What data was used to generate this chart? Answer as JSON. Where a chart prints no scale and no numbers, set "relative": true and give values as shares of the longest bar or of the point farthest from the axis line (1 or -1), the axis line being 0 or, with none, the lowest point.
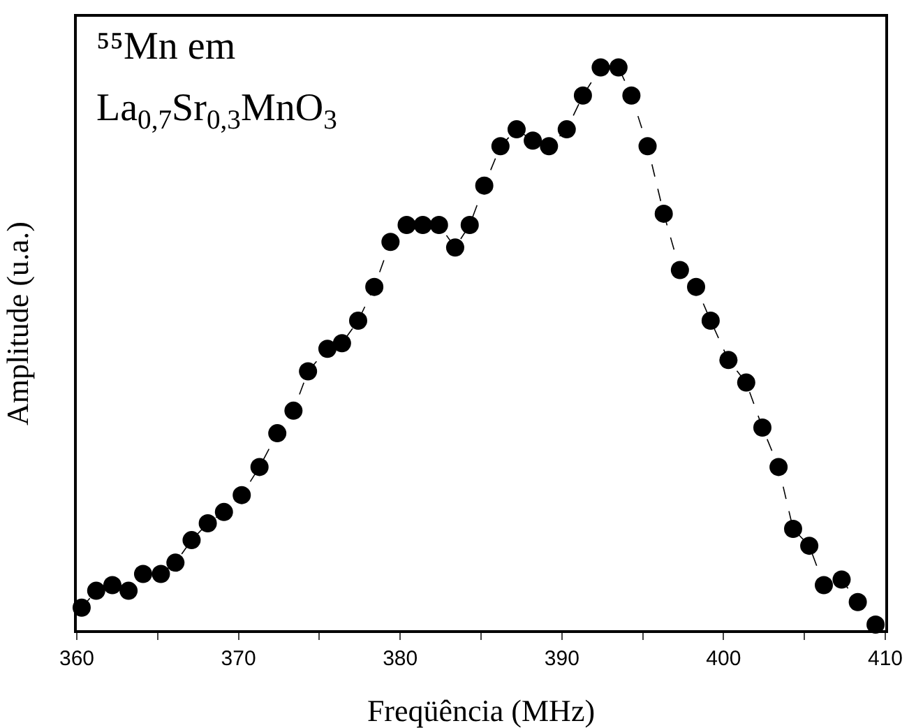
{
  "chart_data": {
    "type": "line",
    "relative": true,
    "xlabel": "Freqüência (MHz)",
    "ylabel": "Amplitude (u.a.)",
    "annotations": [
      "⁵⁵Mn em",
      "La$_{0,7}$Sr$_{0,3}$MnO$_{3}$"
    ],
    "xlim": [
      360,
      410
    ],
    "xticks": [
      360,
      {
        "value": 365,
        "label": null
      },
      370,
      {
        "value": 375,
        "label": null
      },
      380,
      {
        "value": 385,
        "label": null
      },
      390,
      {
        "value": 395,
        "label": null
      },
      400,
      {
        "value": 405,
        "label": null
      },
      410
    ],
    "marker": "circle",
    "line_style": "dashed",
    "grid": false,
    "legend": false,
    "x": [
      360.3,
      361.2,
      362.2,
      363.2,
      364.1,
      365.2,
      366.1,
      367.1,
      368.1,
      369.1,
      370.2,
      371.3,
      372.4,
      373.4,
      374.3,
      375.5,
      376.4,
      377.4,
      378.4,
      379.4,
      380.4,
      381.4,
      382.4,
      383.4,
      384.3,
      385.2,
      386.2,
      387.2,
      388.2,
      389.2,
      390.3,
      391.3,
      392.4,
      393.5,
      394.3,
      395.3,
      396.3,
      397.3,
      398.3,
      399.2,
      400.3,
      401.4,
      402.4,
      403.4,
      404.3,
      405.3,
      406.2,
      407.3,
      408.3,
      409.4
    ],
    "series": [
      {
        "color": "#000000",
        "values": [
          0.04,
          0.07,
          0.08,
          0.07,
          0.1,
          0.1,
          0.12,
          0.16,
          0.19,
          0.21,
          0.24,
          0.29,
          0.35,
          0.39,
          0.46,
          0.5,
          0.51,
          0.55,
          0.61,
          0.69,
          0.72,
          0.72,
          0.72,
          0.68,
          0.72,
          0.79,
          0.86,
          0.89,
          0.87,
          0.86,
          0.89,
          0.95,
          1.0,
          1.0,
          0.95,
          0.86,
          0.74,
          0.64,
          0.61,
          0.55,
          0.48,
          0.44,
          0.36,
          0.29,
          0.18,
          0.15,
          0.08,
          0.09,
          0.05,
          0.01
        ]
      }
    ]
  }
}
